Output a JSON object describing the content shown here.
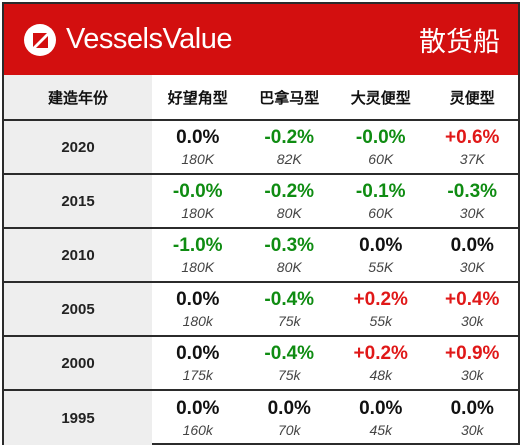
{
  "header": {
    "brand": "VesselsValue",
    "logo_icon": "vesselsvalue-logo-icon",
    "category": "散货船",
    "background": "#d30f0f"
  },
  "columns": {
    "year": "建造年份",
    "c1": "好望角型",
    "c2": "巴拿马型",
    "c3": "大灵便型",
    "c4": "灵便型"
  },
  "colors": {
    "positive": "#e01818",
    "negative": "#0f8c12",
    "neutral": "#111111"
  },
  "rows": [
    {
      "year": "2020",
      "cells": [
        {
          "pct": "0.0%",
          "size": "180K",
          "tone": "zero"
        },
        {
          "pct": "-0.2%",
          "size": "82K",
          "tone": "neg"
        },
        {
          "pct": "-0.0%",
          "size": "60K",
          "tone": "neg"
        },
        {
          "pct": "+0.6%",
          "size": "37K",
          "tone": "pos"
        }
      ]
    },
    {
      "year": "2015",
      "cells": [
        {
          "pct": "-0.0%",
          "size": "180K",
          "tone": "neg"
        },
        {
          "pct": "-0.2%",
          "size": "80K",
          "tone": "neg"
        },
        {
          "pct": "-0.1%",
          "size": "60K",
          "tone": "neg"
        },
        {
          "pct": "-0.3%",
          "size": "30K",
          "tone": "neg"
        }
      ]
    },
    {
      "year": "2010",
      "cells": [
        {
          "pct": "-1.0%",
          "size": "180K",
          "tone": "neg"
        },
        {
          "pct": "-0.3%",
          "size": "80K",
          "tone": "neg"
        },
        {
          "pct": "0.0%",
          "size": "55K",
          "tone": "zero"
        },
        {
          "pct": "0.0%",
          "size": "30K",
          "tone": "zero"
        }
      ]
    },
    {
      "year": "2005",
      "cells": [
        {
          "pct": "0.0%",
          "size": "180k",
          "tone": "zero"
        },
        {
          "pct": "-0.4%",
          "size": "75k",
          "tone": "neg"
        },
        {
          "pct": "+0.2%",
          "size": "55k",
          "tone": "pos"
        },
        {
          "pct": "+0.4%",
          "size": "30k",
          "tone": "pos"
        }
      ]
    },
    {
      "year": "2000",
      "cells": [
        {
          "pct": "0.0%",
          "size": "175k",
          "tone": "zero"
        },
        {
          "pct": "-0.4%",
          "size": "75k",
          "tone": "neg"
        },
        {
          "pct": "+0.2%",
          "size": "48k",
          "tone": "pos"
        },
        {
          "pct": "+0.9%",
          "size": "30k",
          "tone": "pos"
        }
      ]
    },
    {
      "year": "1995",
      "cells": [
        {
          "pct": "0.0%",
          "size": "160k",
          "tone": "zero"
        },
        {
          "pct": "0.0%",
          "size": "70k",
          "tone": "zero"
        },
        {
          "pct": "0.0%",
          "size": "45k",
          "tone": "zero"
        },
        {
          "pct": "0.0%",
          "size": "30k",
          "tone": "zero"
        }
      ]
    }
  ]
}
